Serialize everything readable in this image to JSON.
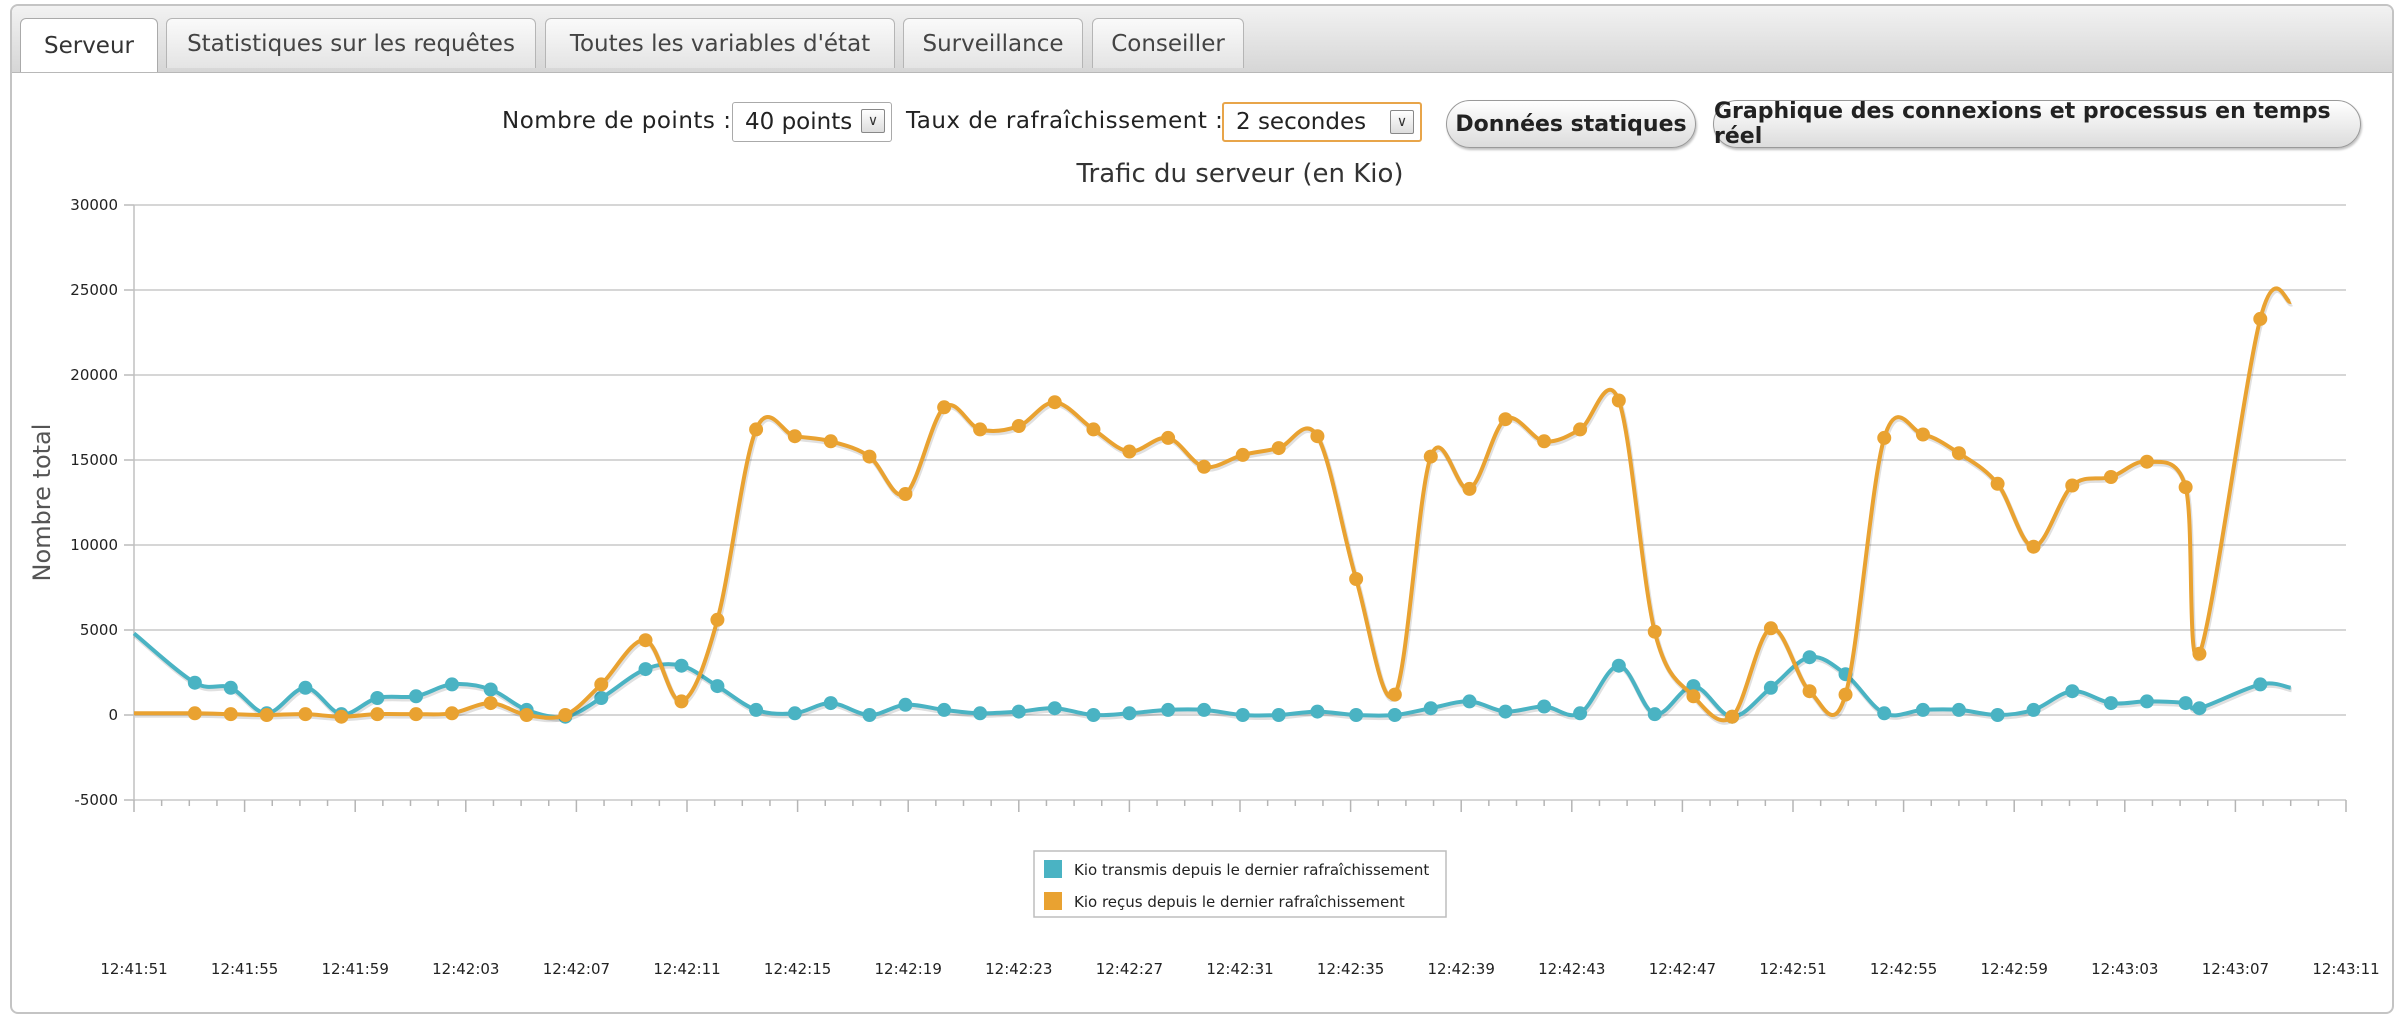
{
  "tabs": [
    {
      "label": "Serveur",
      "active": true
    },
    {
      "label": "Statistiques sur les requêtes",
      "active": false
    },
    {
      "label": "Toutes les variables d'état",
      "active": false
    },
    {
      "label": "Surveillance",
      "active": false
    },
    {
      "label": "Conseiller",
      "active": false
    }
  ],
  "controls": {
    "points_label": "Nombre de points :",
    "points_value": "40 points",
    "refresh_label": "Taux de rafraîchissement :",
    "refresh_value": "2 secondes",
    "static_button": "Données statiques",
    "realtime_button": "Graphique des connexions et processus en temps réel"
  },
  "colors": {
    "transmitted": "#4ab3c3",
    "received": "#e9a231"
  },
  "chart_data": {
    "type": "line",
    "title": "Trafic du serveur (en Kio)",
    "ylabel": "Nombre total",
    "xlabel": "",
    "ylim": [
      -5000,
      30000
    ],
    "yticks": [
      -5000,
      0,
      5000,
      10000,
      15000,
      20000,
      25000,
      30000
    ],
    "xticks": [
      "12:41:51",
      "12:41:55",
      "12:41:59",
      "12:42:03",
      "12:42:07",
      "12:42:11",
      "12:42:15",
      "12:42:19",
      "12:42:23",
      "12:42:27",
      "12:42:31",
      "12:42:35",
      "12:42:39",
      "12:42:43",
      "12:42:47",
      "12:42:51",
      "12:42:55",
      "12:42:59",
      "12:43:03",
      "12:43:07",
      "12:43:11"
    ],
    "grid": true,
    "legend_position": "bottom-center",
    "series": [
      {
        "name": "Kio transmis depuis le dernier rafraîchissement",
        "color": "#4ab3c3",
        "points": [
          [
            0,
            4800
          ],
          [
            2.2,
            1900
          ],
          [
            3.5,
            1600
          ],
          [
            4.8,
            100
          ],
          [
            6.2,
            1600
          ],
          [
            7.5,
            50
          ],
          [
            8.8,
            1000
          ],
          [
            10.2,
            1100
          ],
          [
            11.5,
            1800
          ],
          [
            12.9,
            1500
          ],
          [
            14.2,
            300
          ],
          [
            15.6,
            -100
          ],
          [
            16.9,
            1000
          ],
          [
            18.5,
            2700
          ],
          [
            19.8,
            2900
          ],
          [
            21.1,
            1700
          ],
          [
            22.5,
            300
          ],
          [
            23.9,
            100
          ],
          [
            25.2,
            700
          ],
          [
            26.6,
            0
          ],
          [
            27.9,
            600
          ],
          [
            29.3,
            300
          ],
          [
            30.6,
            100
          ],
          [
            32,
            200
          ],
          [
            33.3,
            400
          ],
          [
            34.7,
            0
          ],
          [
            36,
            100
          ],
          [
            37.4,
            300
          ],
          [
            38.7,
            300
          ],
          [
            40.1,
            0
          ],
          [
            41.4,
            0
          ],
          [
            42.8,
            200
          ],
          [
            44.2,
            0
          ],
          [
            45.6,
            0
          ],
          [
            46.9,
            400
          ],
          [
            48.3,
            800
          ],
          [
            49.6,
            200
          ],
          [
            51,
            500
          ],
          [
            52.3,
            100
          ],
          [
            53.7,
            2900
          ],
          [
            55,
            50
          ],
          [
            56.4,
            1700
          ],
          [
            57.8,
            -100
          ],
          [
            59.2,
            1600
          ],
          [
            60.6,
            3400
          ],
          [
            61.9,
            2400
          ],
          [
            63.3,
            100
          ],
          [
            64.7,
            300
          ],
          [
            66,
            300
          ],
          [
            67.4,
            0
          ],
          [
            68.7,
            300
          ],
          [
            70.1,
            1400
          ],
          [
            71.5,
            700
          ],
          [
            72.8,
            800
          ],
          [
            74.2,
            700
          ],
          [
            74.7,
            400
          ],
          [
            76.9,
            1800
          ],
          [
            78,
            1600
          ]
        ]
      },
      {
        "name": "Kio reçus depuis le dernier rafraîchissement",
        "color": "#e9a231",
        "points": [
          [
            0,
            100
          ],
          [
            2.2,
            100
          ],
          [
            3.5,
            50
          ],
          [
            4.8,
            0
          ],
          [
            6.2,
            50
          ],
          [
            7.5,
            -100
          ],
          [
            8.8,
            50
          ],
          [
            10.2,
            50
          ],
          [
            11.5,
            100
          ],
          [
            12.9,
            700
          ],
          [
            14.2,
            0
          ],
          [
            15.6,
            0
          ],
          [
            16.9,
            1800
          ],
          [
            18.5,
            4400
          ],
          [
            19.8,
            800
          ],
          [
            21.1,
            5600
          ],
          [
            22.5,
            16800
          ],
          [
            23.9,
            16400
          ],
          [
            25.2,
            16100
          ],
          [
            26.6,
            15200
          ],
          [
            27.9,
            13000
          ],
          [
            29.3,
            18100
          ],
          [
            30.6,
            16800
          ],
          [
            32,
            17000
          ],
          [
            33.3,
            18400
          ],
          [
            34.7,
            16800
          ],
          [
            36,
            15500
          ],
          [
            37.4,
            16300
          ],
          [
            38.7,
            14600
          ],
          [
            40.1,
            15300
          ],
          [
            41.4,
            15700
          ],
          [
            42.8,
            16400
          ],
          [
            44.2,
            8000
          ],
          [
            45.6,
            1200
          ],
          [
            46.9,
            15200
          ],
          [
            48.3,
            13300
          ],
          [
            49.6,
            17400
          ],
          [
            51,
            16100
          ],
          [
            52.3,
            16800
          ],
          [
            53.7,
            18500
          ],
          [
            55,
            4900
          ],
          [
            56.4,
            1100
          ],
          [
            57.8,
            -100
          ],
          [
            59.2,
            5100
          ],
          [
            60.6,
            1400
          ],
          [
            61.9,
            1200
          ],
          [
            63.3,
            16300
          ],
          [
            64.7,
            16500
          ],
          [
            66,
            15400
          ],
          [
            67.4,
            13600
          ],
          [
            68.7,
            9900
          ],
          [
            70.1,
            13500
          ],
          [
            71.5,
            14000
          ],
          [
            72.8,
            14900
          ],
          [
            74.2,
            13400
          ],
          [
            74.7,
            3600
          ],
          [
            76.9,
            23300
          ],
          [
            78,
            24300
          ]
        ]
      }
    ]
  }
}
